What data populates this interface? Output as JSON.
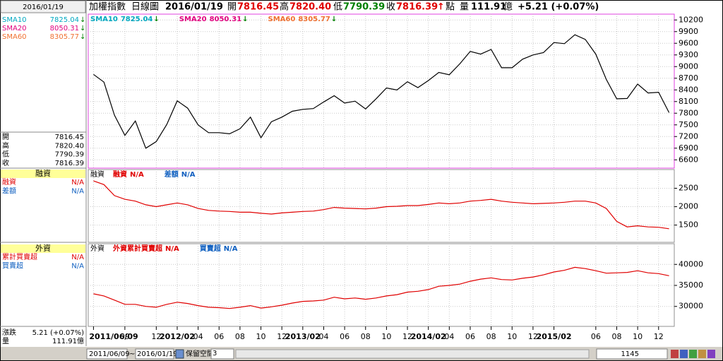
{
  "header": {
    "name": "加權指數",
    "period": "日線圖",
    "date": "2016/01/19",
    "open_label": "開",
    "open": "7816.45",
    "high_label": "高",
    "high": "7820.40",
    "low_label": "低",
    "low": "7790.39",
    "close_label": "收",
    "close": "7816.39",
    "arrow": "↑",
    "unit": "點",
    "volume_label": "量",
    "volume": "111.91",
    "volume_unit": "億",
    "change": "+5.21 (+0.07%)"
  },
  "sidebar": {
    "date": "2016/01/19",
    "sma": [
      {
        "name": "SMA10",
        "value": "7825.04",
        "arrow": "↓"
      },
      {
        "name": "SMA20",
        "value": "8050.31",
        "arrow": "↓"
      },
      {
        "name": "SMA60",
        "value": "8305.77",
        "arrow": "↓"
      }
    ],
    "ohlc": [
      [
        "開",
        "7816.45"
      ],
      [
        "高",
        "7820.40"
      ],
      [
        "低",
        "7790.39"
      ],
      [
        "收",
        "7816.39"
      ]
    ],
    "margin": {
      "title": "融資",
      "rows": [
        [
          "融資",
          "N/A"
        ],
        [
          "差額",
          "N/A"
        ]
      ]
    },
    "foreign": {
      "title": "外資",
      "rows": [
        [
          "累計買賣超",
          "N/A"
        ],
        [
          "買賣超",
          "N/A"
        ]
      ]
    },
    "footer": [
      [
        "漲跌",
        "5.21 (+0.07%)"
      ],
      [
        "量",
        "111.91億"
      ]
    ]
  },
  "toolbar": {
    "start": "2011/06/09",
    "sep": "~",
    "end": "2016/01/19",
    "reserve_label": "保留空間",
    "reserve": "3",
    "count": "1145"
  },
  "chart_data": [
    {
      "type": "line",
      "color": "#000000",
      "legend": [
        {
          "name": "SMA10",
          "value": "7825.04",
          "arrow": "↓",
          "color": "#00a8c0"
        },
        {
          "name": "SMA20",
          "value": "8050.31",
          "arrow": "↓",
          "color": "#e0007f"
        },
        {
          "name": "SMA60",
          "value": "8305.77",
          "arrow": "↓",
          "color": "#f07030"
        }
      ],
      "categories": [
        "2011/06/09",
        null,
        null,
        "09",
        null,
        null,
        "12",
        null,
        "2012/02",
        null,
        "04",
        null,
        "06",
        null,
        "08",
        null,
        "10",
        null,
        "12",
        null,
        "2013/02",
        null,
        "04",
        null,
        "06",
        null,
        "08",
        null,
        "10",
        null,
        "12",
        null,
        "2014/02",
        null,
        "04",
        null,
        "06",
        null,
        "08",
        null,
        "10",
        null,
        "12",
        null,
        "2015/02",
        null,
        null,
        null,
        "06",
        null,
        "08",
        null,
        "10",
        null,
        "12",
        null
      ],
      "values": [
        8800,
        8600,
        7750,
        7230,
        7600,
        6900,
        7070,
        7510,
        8120,
        7930,
        7500,
        7300,
        7300,
        7270,
        7400,
        7700,
        7170,
        7580,
        7700,
        7850,
        7900,
        7920,
        8090,
        8250,
        8060,
        8110,
        7910,
        8170,
        8450,
        8400,
        8610,
        8460,
        8640,
        8850,
        8790,
        9070,
        9390,
        9320,
        9440,
        8970,
        8970,
        9190,
        9300,
        9360,
        9620,
        9590,
        9820,
        9700,
        9320,
        8670,
        8170,
        8180,
        8550,
        8320,
        8340,
        7816
      ],
      "ylim": [
        6450,
        10350
      ],
      "yticks": [
        6600,
        6900,
        7200,
        7500,
        7800,
        8100,
        8400,
        8700,
        9000,
        9300,
        9600,
        9900,
        10200
      ],
      "grid": true
    },
    {
      "type": "line",
      "color": "#e00000",
      "title": "融資",
      "legend": [
        {
          "name": "融資",
          "value": "N/A",
          "color": "#e00000"
        },
        {
          "name": "差額",
          "value": "N/A",
          "color": "#1060c0"
        }
      ],
      "values": [
        2700,
        2600,
        2300,
        2200,
        2150,
        2050,
        2000,
        2050,
        2100,
        2050,
        1950,
        1900,
        1880,
        1870,
        1850,
        1850,
        1820,
        1800,
        1830,
        1850,
        1870,
        1880,
        1920,
        1980,
        1960,
        1950,
        1940,
        1960,
        2000,
        2010,
        2030,
        2030,
        2060,
        2100,
        2080,
        2100,
        2150,
        2170,
        2200,
        2150,
        2120,
        2100,
        2080,
        2090,
        2100,
        2120,
        2150,
        2150,
        2100,
        1950,
        1600,
        1450,
        1480,
        1450,
        1440,
        1400
      ],
      "ylim": [
        1070,
        2970
      ],
      "yticks": [
        1500,
        2000,
        2500
      ],
      "grid": true
    },
    {
      "type": "line",
      "color": "#e00000",
      "title": "外資",
      "legend": [
        {
          "name": "外資累計買賣超",
          "value": "N/A",
          "color": "#e00000"
        },
        {
          "name": "買賣超",
          "value": "N/A",
          "color": "#1060c0"
        }
      ],
      "values": [
        33000,
        32500,
        31500,
        30500,
        30500,
        30000,
        29800,
        30500,
        31000,
        30700,
        30200,
        29800,
        29700,
        29500,
        29800,
        30200,
        29600,
        29900,
        30300,
        30800,
        31200,
        31300,
        31500,
        32200,
        31800,
        32000,
        31700,
        32000,
        32500,
        32800,
        33400,
        33600,
        34000,
        34800,
        35000,
        35300,
        36000,
        36500,
        36800,
        36400,
        36300,
        36700,
        37000,
        37500,
        38200,
        38600,
        39300,
        39000,
        38500,
        37900,
        38000,
        38100,
        38500,
        38000,
        37800,
        37300
      ],
      "ylim": [
        25250,
        44750
      ],
      "yticks": [
        30000,
        35000,
        40000
      ],
      "grid": true
    }
  ]
}
